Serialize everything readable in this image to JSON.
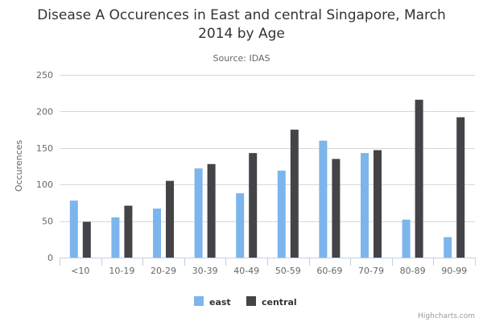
{
  "chart_data": {
    "type": "bar",
    "title": "Disease A Occurences in East and central Singapore, March 2014 by Age",
    "title_lines": [
      "Disease A Occurences in East and central Singapore, March",
      "2014 by Age"
    ],
    "subtitle": "Source: IDAS",
    "xlabel": "",
    "ylabel": "Occurences",
    "ylim": [
      0,
      250
    ],
    "yticks": [
      0,
      50,
      100,
      150,
      200,
      250
    ],
    "grid": true,
    "legend_placement": "bottom-center",
    "categories": [
      "<10",
      "10-19",
      "20-29",
      "30-39",
      "40-49",
      "50-59",
      "60-69",
      "70-79",
      "80-89",
      "90-99"
    ],
    "series": [
      {
        "name": "east",
        "color": "#7cb5ec",
        "values": [
          78,
          55,
          67,
          122,
          88,
          119,
          160,
          143,
          52,
          28
        ]
      },
      {
        "name": "central",
        "color": "#434348",
        "values": [
          49,
          71,
          105,
          128,
          143,
          175,
          135,
          147,
          216,
          192
        ]
      }
    ]
  },
  "credits": "Highcharts.com"
}
